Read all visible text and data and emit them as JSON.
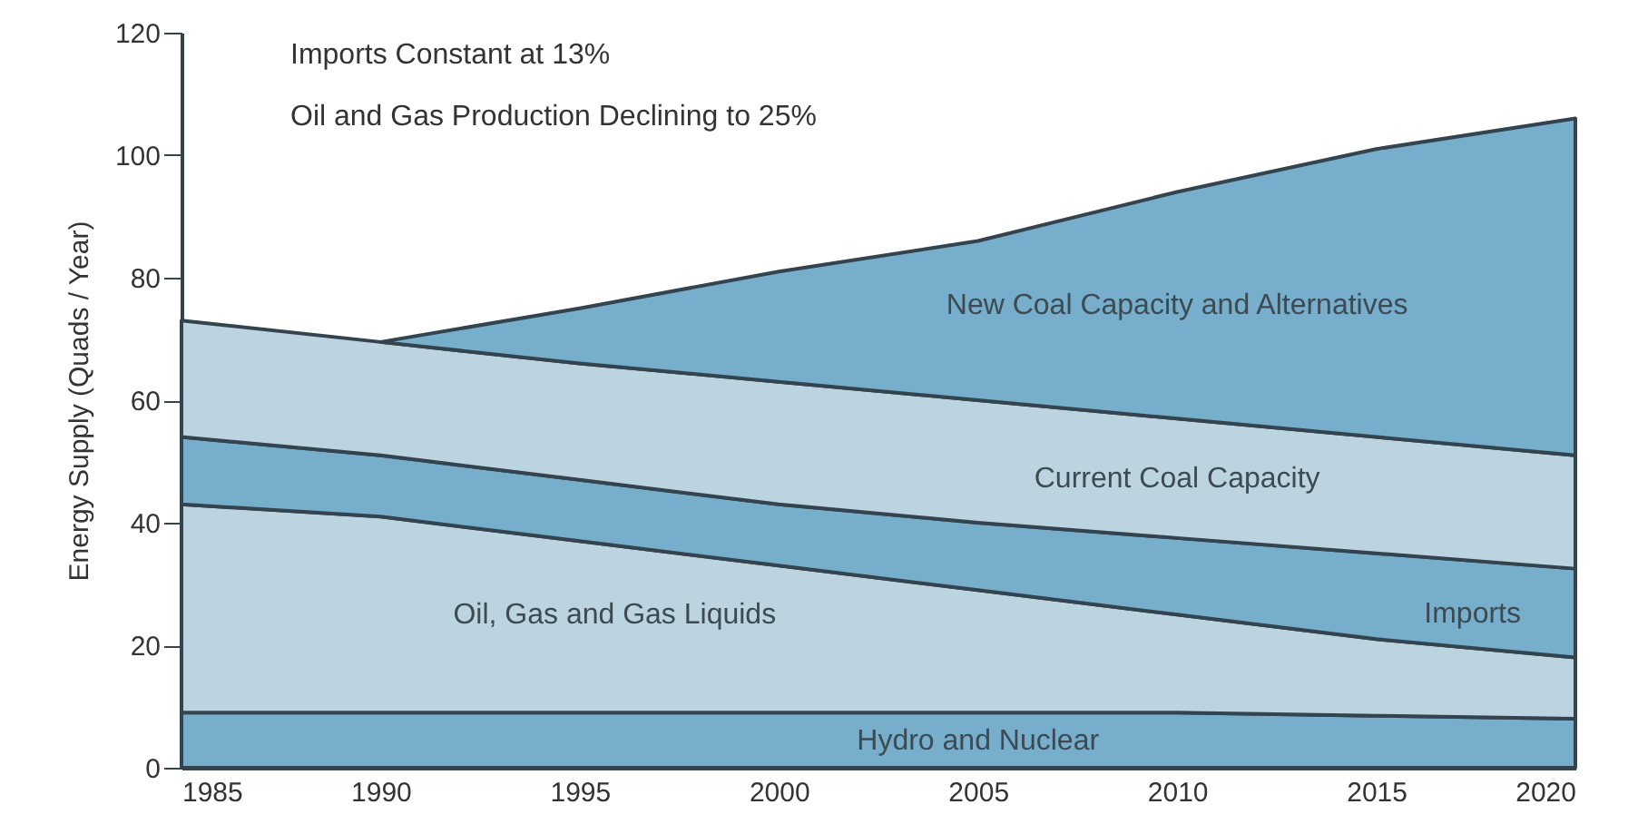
{
  "chart_data": {
    "type": "area",
    "stacked": true,
    "ylabel": "Energy Supply (Quads / Year)",
    "x": [
      1985,
      1990,
      1995,
      2000,
      2005,
      2010,
      2015,
      2020
    ],
    "xlim": [
      1985,
      2020
    ],
    "xticks": [
      1985,
      1990,
      1995,
      2000,
      2005,
      2010,
      2015,
      2020
    ],
    "ylim": [
      0,
      120
    ],
    "yticks": [
      0,
      20,
      40,
      60,
      80,
      100,
      120
    ],
    "grid": false,
    "annotations": [
      "Imports Constant at 13%",
      "Oil and Gas Production Declining to 25%"
    ],
    "series": [
      {
        "name": "Hydro and Nuclear",
        "color": "#76aecb",
        "values": [
          9,
          9,
          9,
          9,
          9,
          9,
          8.5,
          8
        ]
      },
      {
        "name": "Oil, Gas and Gas Liquids",
        "color": "#bcd4e0",
        "values": [
          34,
          32,
          28,
          24,
          20,
          16,
          12.5,
          10
        ]
      },
      {
        "name": "Imports",
        "color": "#76aecb",
        "values": [
          11,
          10,
          10,
          10,
          11,
          12.5,
          14,
          14.5
        ]
      },
      {
        "name": "Current Coal Capacity",
        "color": "#bcd4e0",
        "values": [
          19,
          18.5,
          19,
          20,
          20,
          19.5,
          19,
          18.5
        ]
      },
      {
        "name": "New Coal Capacity and Alternatives",
        "color": "#76aecb",
        "values": [
          null,
          0,
          9,
          18,
          26,
          37,
          47,
          55
        ]
      }
    ]
  }
}
